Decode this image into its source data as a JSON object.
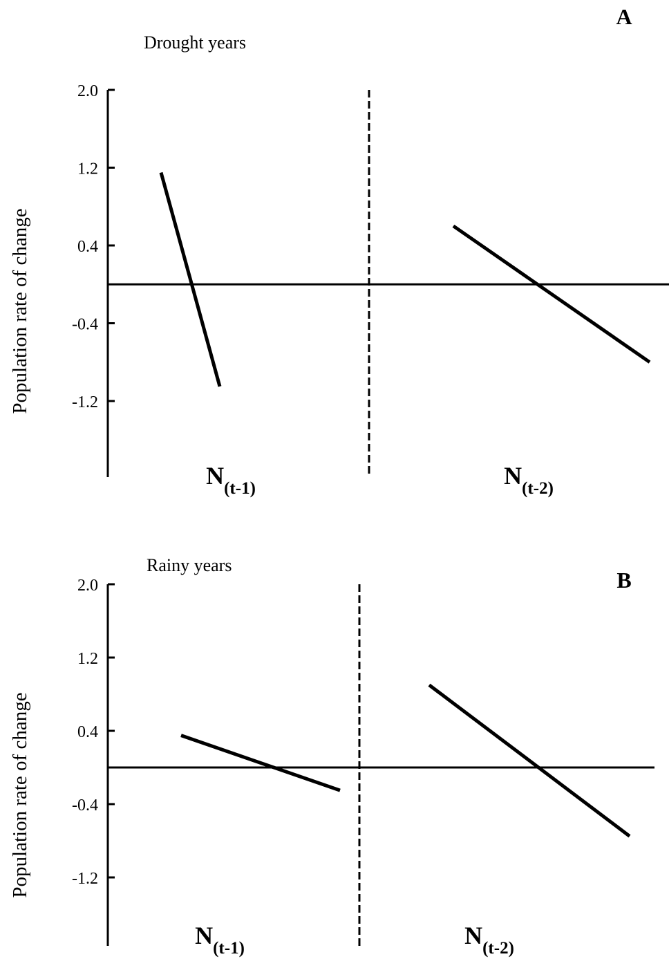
{
  "chart_data": [
    {
      "type": "line",
      "panel_label": "A",
      "subtitle": "Drought years",
      "ylabel": "Population rate of change",
      "ylim": [
        -1.7,
        2.0
      ],
      "yticks": [
        2.0,
        1.2,
        0.4,
        -0.4,
        -1.2
      ],
      "ytick_labels": [
        "2.0",
        "1.2",
        "0.4",
        "-0.4",
        "-1.2"
      ],
      "zero_line": true,
      "groups": [
        {
          "main": "N",
          "sub": "(t-1)",
          "segment": [
            1.15,
            -1.05
          ]
        },
        {
          "main": "N",
          "sub": "(t-2)",
          "segment": [
            0.6,
            -0.8
          ]
        }
      ]
    },
    {
      "type": "line",
      "panel_label": "B",
      "subtitle": "Rainy years",
      "ylabel": "Population rate of change",
      "ylim": [
        -1.7,
        2.0
      ],
      "yticks": [
        2.0,
        1.2,
        0.4,
        -0.4,
        -1.2
      ],
      "ytick_labels": [
        "2.0",
        "1.2",
        "0.4",
        "-0.4",
        "-1.2"
      ],
      "zero_line": true,
      "groups": [
        {
          "main": "N",
          "sub": "(t-1)",
          "segment": [
            0.35,
            -0.25
          ]
        },
        {
          "main": "N",
          "sub": "(t-2)",
          "segment": [
            0.9,
            -0.75
          ]
        }
      ]
    }
  ]
}
